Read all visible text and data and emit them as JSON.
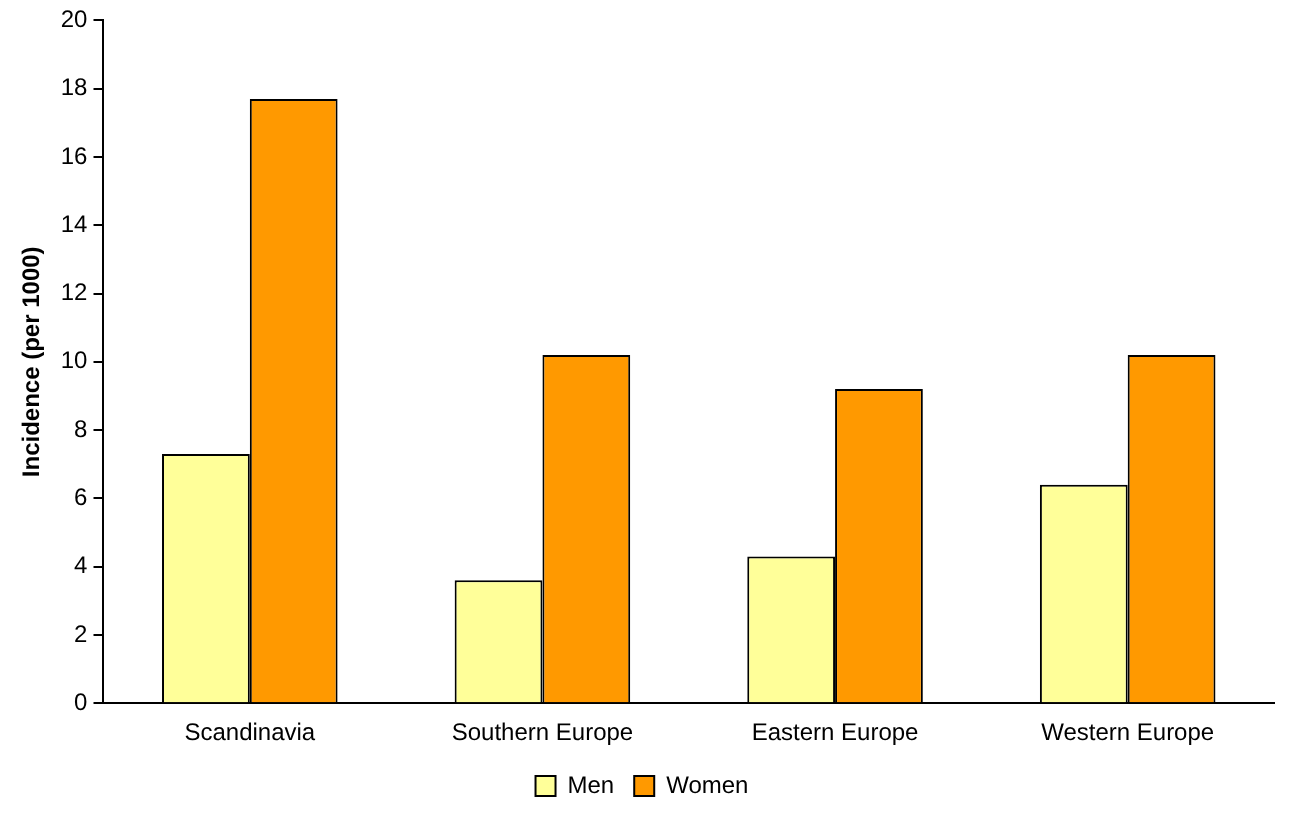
{
  "chart_data": {
    "type": "bar",
    "ylabel": "Incidence (per 1000)",
    "categories": [
      "Scandinavia",
      "Southern Europe",
      "Eastern Europe",
      "Western Europe"
    ],
    "series": [
      {
        "name": "Men",
        "color": "#ffff99",
        "values": [
          7.3,
          3.6,
          4.3,
          6.4
        ]
      },
      {
        "name": "Women",
        "color": "#ff9900",
        "values": [
          17.7,
          10.2,
          9.2,
          10.2
        ]
      }
    ],
    "ylim": [
      0,
      20
    ],
    "yticks": [
      0,
      2,
      4,
      6,
      8,
      10,
      12,
      14,
      16,
      18,
      20
    ],
    "grid": false,
    "legend": "bottom"
  }
}
